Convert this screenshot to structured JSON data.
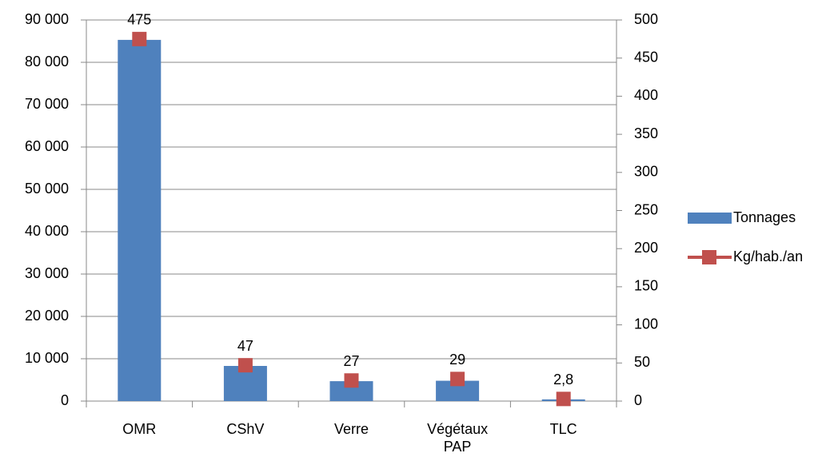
{
  "chart_data": {
    "type": "bar",
    "categories": [
      "OMR",
      "CShV",
      "Verre",
      "Végétaux PAP",
      "TLC"
    ],
    "series": [
      {
        "name": "Tonnages",
        "type": "bar",
        "color": "#4f81bd",
        "values": [
          85300,
          8300,
          4700,
          4800,
          400
        ]
      },
      {
        "name": "Kg/hab./an",
        "type": "line",
        "axis": "y2",
        "color": "#c0504d",
        "values": [
          475,
          47,
          27,
          29,
          2.8
        ],
        "value_labels": [
          "475",
          "47",
          "27",
          "29",
          "2,8"
        ]
      }
    ],
    "ylim": [
      0,
      90000
    ],
    "yticks": [
      {
        "value": 0,
        "label": "0"
      },
      {
        "value": 10000,
        "label": "10 000"
      },
      {
        "value": 20000,
        "label": "20 000"
      },
      {
        "value": 30000,
        "label": "30 000"
      },
      {
        "value": 40000,
        "label": "40 000"
      },
      {
        "value": 50000,
        "label": "50 000"
      },
      {
        "value": 60000,
        "label": "60 000"
      },
      {
        "value": 70000,
        "label": "70 000"
      },
      {
        "value": 80000,
        "label": "80 000"
      },
      {
        "value": 90000,
        "label": "90 000"
      }
    ],
    "y2lim": [
      0,
      500
    ],
    "y2ticks": [
      0,
      50,
      100,
      150,
      200,
      250,
      300,
      350,
      400,
      450,
      500
    ],
    "grid": true,
    "legend": "right"
  }
}
